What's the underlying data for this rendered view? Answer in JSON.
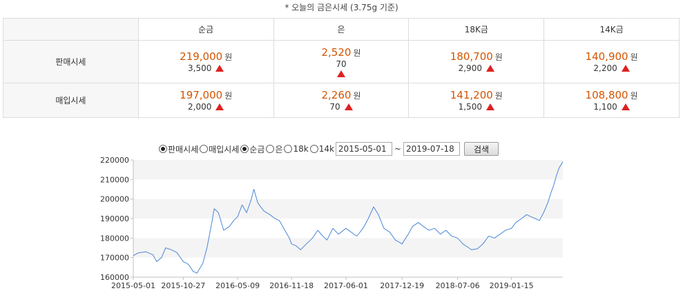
{
  "title": "* 오늘의 금은시세 (3.75g 기준)",
  "table": {
    "columns": [
      "순금",
      "은",
      "18K금",
      "14K금"
    ],
    "unit": "원",
    "rows": [
      {
        "label": "판매시세",
        "cells": [
          {
            "price": "219,000",
            "change": "3,500"
          },
          {
            "price": "2,520",
            "change": "70"
          },
          {
            "price": "180,700",
            "change": "2,900"
          },
          {
            "price": "140,900",
            "change": "2,200"
          }
        ]
      },
      {
        "label": "매입시세",
        "cells": [
          {
            "price": "197,000",
            "change": "2,000"
          },
          {
            "price": "2,260",
            "change": "70"
          },
          {
            "price": "141,200",
            "change": "1,500"
          },
          {
            "price": "108,800",
            "change": "1,100"
          }
        ]
      }
    ],
    "change_direction": "up",
    "up_color": "#e02020",
    "price_color": "#d35400"
  },
  "controls": {
    "options": [
      {
        "label": "판매시세",
        "selected": true
      },
      {
        "label": "매입시세",
        "selected": false
      },
      {
        "label": "순금",
        "selected": true
      },
      {
        "label": "은",
        "selected": false
      },
      {
        "label": "18k",
        "selected": false
      },
      {
        "label": "14k",
        "selected": false
      }
    ],
    "start_date": "2015-05-01",
    "end_date": "2019-07-18",
    "separator": "~",
    "search_label": "검색"
  },
  "chart_data": {
    "type": "line",
    "line_color": "#4a86d6",
    "band_color": "#f4f4f4",
    "ylim": [
      160000,
      220000
    ],
    "yticks": [
      "160000",
      "170000",
      "180000",
      "190000",
      "200000",
      "210000",
      "220000"
    ],
    "xlim": [
      "2015-05-01",
      "2019-07-18"
    ],
    "xticks": [
      "2015-05-01",
      "2015-10-27",
      "2016-05-09",
      "2016-11-18",
      "2017-06-01",
      "2017-12-19",
      "2018-07-06",
      "2019-01-15"
    ],
    "series": [
      {
        "x": [
          "2015-05-01",
          "2015-05-20",
          "2015-06-15",
          "2015-07-10",
          "2015-07-24",
          "2015-08-10",
          "2015-08-25",
          "2015-09-15",
          "2015-10-05",
          "2015-10-27",
          "2015-11-15",
          "2015-12-01",
          "2015-12-15",
          "2016-01-05",
          "2016-01-20",
          "2016-02-05",
          "2016-02-15",
          "2016-03-01",
          "2016-03-20",
          "2016-04-10",
          "2016-04-25",
          "2016-05-09",
          "2016-05-25",
          "2016-06-10",
          "2016-06-27",
          "2016-07-06",
          "2016-07-20",
          "2016-08-10",
          "2016-09-01",
          "2016-09-20",
          "2016-10-05",
          "2016-10-25",
          "2016-11-10",
          "2016-11-18",
          "2016-12-05",
          "2016-12-20",
          "2017-01-10",
          "2017-02-01",
          "2017-02-20",
          "2017-03-10",
          "2017-03-25",
          "2017-04-15",
          "2017-05-05",
          "2017-06-01",
          "2017-06-20",
          "2017-07-10",
          "2017-08-01",
          "2017-08-20",
          "2017-09-08",
          "2017-09-25",
          "2017-10-15",
          "2017-11-05",
          "2017-11-25",
          "2017-12-19",
          "2018-01-10",
          "2018-01-26",
          "2018-02-15",
          "2018-03-05",
          "2018-03-25",
          "2018-04-15",
          "2018-05-05",
          "2018-05-25",
          "2018-06-15",
          "2018-07-06",
          "2018-07-25",
          "2018-08-15",
          "2018-08-25",
          "2018-09-15",
          "2018-10-05",
          "2018-10-25",
          "2018-11-15",
          "2018-12-05",
          "2018-12-25",
          "2019-01-15",
          "2019-01-31",
          "2019-02-20",
          "2019-03-10",
          "2019-03-25",
          "2019-04-10",
          "2019-04-25",
          "2019-05-10",
          "2019-05-25",
          "2019-06-05",
          "2019-06-15",
          "2019-06-25",
          "2019-07-05",
          "2019-07-18"
        ],
        "y": [
          171000,
          172500,
          173000,
          171500,
          168000,
          170000,
          175000,
          174000,
          172500,
          168000,
          166500,
          163000,
          162000,
          167000,
          175000,
          187000,
          195000,
          193000,
          184000,
          186000,
          189000,
          191000,
          197000,
          193000,
          200000,
          205000,
          198000,
          194000,
          192000,
          190000,
          189000,
          184000,
          180000,
          177000,
          176000,
          174000,
          177000,
          180000,
          184000,
          181000,
          179000,
          185000,
          182000,
          185000,
          183000,
          181000,
          185000,
          190000,
          196000,
          192000,
          185000,
          183000,
          179000,
          177000,
          182000,
          186000,
          188000,
          186000,
          184000,
          185000,
          182000,
          184000,
          181000,
          180000,
          177000,
          175000,
          174000,
          174500,
          177000,
          181000,
          180000,
          182000,
          184000,
          185000,
          188000,
          190000,
          192000,
          191000,
          190000,
          189000,
          193000,
          198000,
          203000,
          207000,
          212000,
          216000,
          219000
        ]
      }
    ]
  }
}
